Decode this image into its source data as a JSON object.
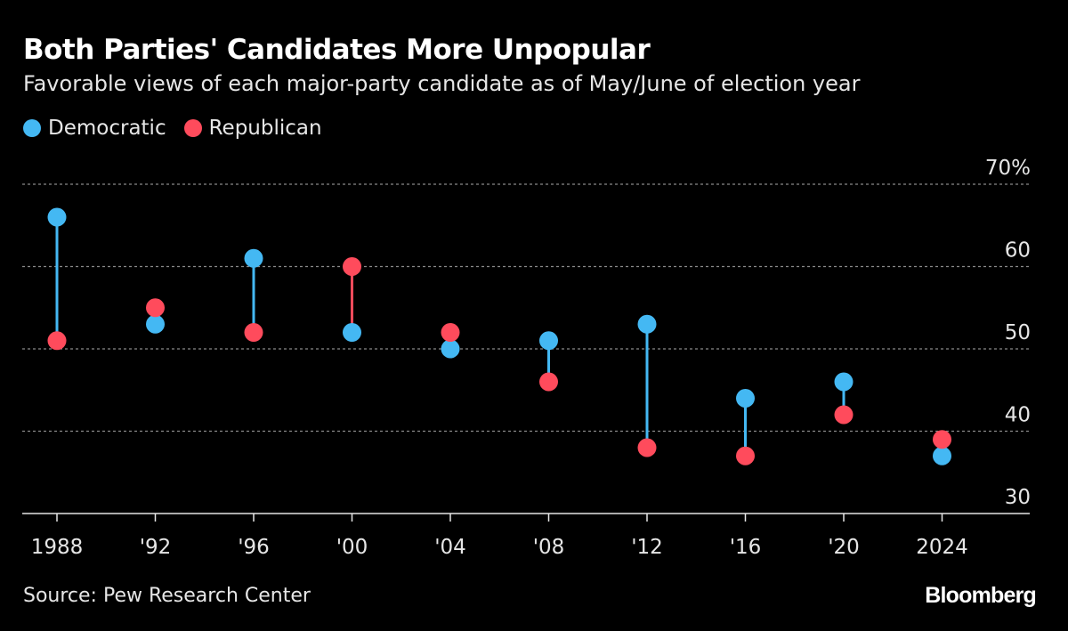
{
  "chart_data": {
    "type": "dumbbell",
    "title": "Both Parties' Candidates More Unpopular",
    "subtitle": "Favorable views of each major-party candidate as of May/June of election year",
    "categories": [
      "1988",
      "'92",
      "'96",
      "'00",
      "'04",
      "'08",
      "'12",
      "'16",
      "'20",
      "2024"
    ],
    "series": [
      {
        "name": "Democratic",
        "color": "#44b8f3",
        "values": [
          66,
          53,
          61,
          52,
          50,
          51,
          53,
          44,
          46,
          37
        ]
      },
      {
        "name": "Republican",
        "color": "#ff4b5c",
        "values": [
          51,
          55,
          52,
          60,
          52,
          46,
          38,
          37,
          42,
          39
        ]
      }
    ],
    "ylim": [
      30,
      70
    ],
    "yticks": [
      "30",
      "40",
      "50",
      "60",
      "70%"
    ],
    "ytick_values": [
      30,
      40,
      50,
      60,
      70
    ],
    "grid": true,
    "legend": "top-left",
    "source": "Source: Pew Research Center",
    "brand": "Bloomberg"
  }
}
